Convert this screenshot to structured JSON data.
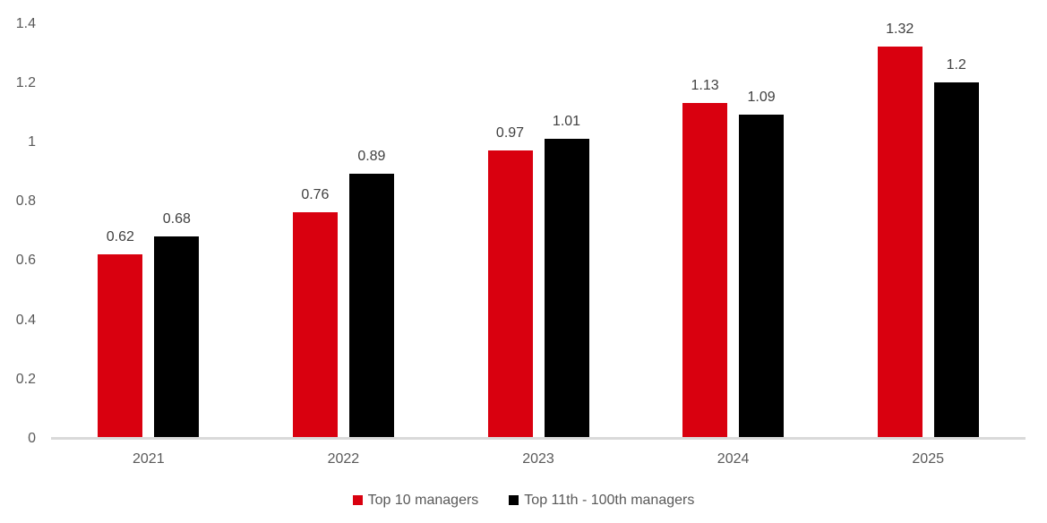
{
  "chart_data": {
    "type": "bar",
    "title": "",
    "xlabel": "",
    "ylabel": "",
    "categories": [
      "2021",
      "2022",
      "2023",
      "2024",
      "2025"
    ],
    "series": [
      {
        "name": "Top 10 managers",
        "color": "#d9000f",
        "values": [
          0.62,
          0.76,
          0.97,
          1.13,
          1.32
        ],
        "labels": [
          "0.62",
          "0.76",
          "0.97",
          "1.13",
          "1.32"
        ]
      },
      {
        "name": "Top 11th - 100th managers",
        "color": "#000000",
        "values": [
          0.68,
          0.89,
          1.01,
          1.09,
          1.2
        ],
        "labels": [
          "0.68",
          "0.89",
          "1.01",
          "1.09",
          "1.2"
        ]
      }
    ],
    "ylim": [
      0,
      1.4
    ],
    "yticks": [
      0,
      0.2,
      0.4,
      0.6,
      0.8,
      1,
      1.2,
      1.4
    ],
    "ytick_labels": [
      "0",
      "0.2",
      "0.4",
      "0.6",
      "0.8",
      "1",
      "1.2",
      "1.4"
    ],
    "grid": false,
    "data_labels": true,
    "legend_position": "bottom"
  },
  "colors": {
    "axis_line": "#d9d9d9",
    "tick_text": "#595959",
    "data_label_text": "#404040",
    "legend_text": "#595959"
  }
}
